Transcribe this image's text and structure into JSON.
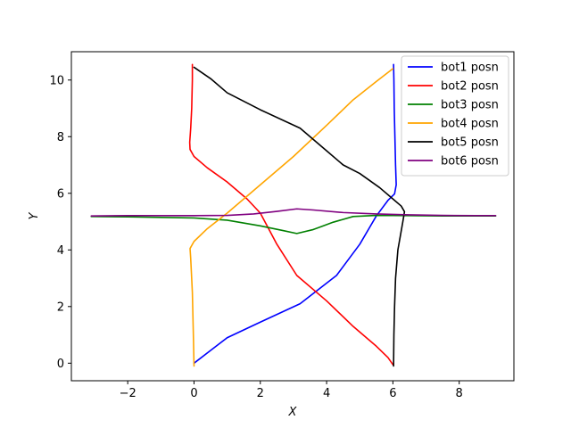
{
  "chart_data": {
    "type": "line",
    "title": "",
    "xlabel": "X",
    "ylabel": "Y",
    "xlim": [
      -3.7,
      9.65
    ],
    "ylim": [
      -0.62,
      11.0
    ],
    "xticks": [
      -2,
      0,
      2,
      4,
      6,
      8
    ],
    "xtick_labels": [
      "−2",
      "0",
      "2",
      "4",
      "6",
      "8"
    ],
    "yticks": [
      0,
      2,
      4,
      6,
      8,
      10
    ],
    "ytick_labels": [
      "0",
      "2",
      "4",
      "6",
      "8",
      "10"
    ],
    "grid": false,
    "legend_position": "top-right",
    "series": [
      {
        "name": "bot1 posn",
        "color": "#0000ff",
        "x": [
          0.0,
          0.5,
          1.0,
          2.0,
          3.2,
          4.3,
          5.0,
          5.5,
          5.85,
          6.05,
          6.1,
          6.08,
          6.06,
          6.04,
          6.03,
          6.02
        ],
        "y": [
          0.0,
          0.45,
          0.9,
          1.45,
          2.1,
          3.1,
          4.2,
          5.2,
          5.75,
          5.98,
          6.3,
          7.0,
          8.0,
          9.0,
          10.0,
          10.55
        ]
      },
      {
        "name": "bot2 posn",
        "color": "#ff0000",
        "x": [
          -0.05,
          -0.05,
          -0.07,
          -0.1,
          -0.13,
          -0.12,
          0.0,
          0.4,
          1.0,
          1.6,
          2.0,
          2.5,
          3.1,
          4.0,
          4.8,
          5.5,
          5.85,
          6.0
        ],
        "y": [
          10.55,
          10.0,
          9.0,
          8.3,
          7.8,
          7.55,
          7.3,
          6.9,
          6.4,
          5.8,
          5.3,
          4.2,
          3.1,
          2.2,
          1.3,
          0.6,
          0.2,
          -0.05
        ]
      },
      {
        "name": "bot3 posn",
        "color": "#008000",
        "x": [
          -3.1,
          -2.0,
          0.0,
          1.0,
          2.0,
          2.7,
          3.1,
          3.6,
          4.2,
          4.8,
          5.5,
          6.5,
          7.5,
          8.5,
          9.1
        ],
        "y": [
          5.18,
          5.17,
          5.13,
          5.05,
          4.85,
          4.68,
          4.58,
          4.72,
          4.98,
          5.18,
          5.22,
          5.21,
          5.2,
          5.2,
          5.2
        ]
      },
      {
        "name": "bot4 posn",
        "color": "#ffa500",
        "x": [
          0.0,
          -0.02,
          -0.05,
          -0.1,
          -0.12,
          0.0,
          0.4,
          1.0,
          2.0,
          3.0,
          4.0,
          4.8,
          5.5,
          6.0
        ],
        "y": [
          -0.1,
          1.0,
          2.5,
          3.7,
          4.05,
          4.3,
          4.75,
          5.3,
          6.3,
          7.3,
          8.4,
          9.3,
          9.95,
          10.4
        ]
      },
      {
        "name": "bot5 posn",
        "color": "#000000",
        "x": [
          0.0,
          0.5,
          1.0,
          2.0,
          3.2,
          4.0,
          4.5,
          5.0,
          5.6,
          6.0,
          6.25,
          6.35,
          6.3,
          6.15,
          6.08,
          6.05,
          6.03,
          6.02
        ],
        "y": [
          10.45,
          10.05,
          9.55,
          8.95,
          8.3,
          7.5,
          7.0,
          6.7,
          6.2,
          5.8,
          5.55,
          5.35,
          5.0,
          4.0,
          3.0,
          2.0,
          1.0,
          -0.1
        ]
      },
      {
        "name": "bot6 posn",
        "color": "#800080",
        "x": [
          -3.1,
          -2.0,
          0.0,
          1.0,
          1.8,
          2.5,
          3.1,
          3.6,
          4.5,
          5.5,
          6.5,
          7.5,
          8.5,
          9.1
        ],
        "y": [
          5.2,
          5.21,
          5.21,
          5.22,
          5.27,
          5.36,
          5.45,
          5.41,
          5.32,
          5.27,
          5.24,
          5.22,
          5.21,
          5.21
        ]
      }
    ]
  }
}
